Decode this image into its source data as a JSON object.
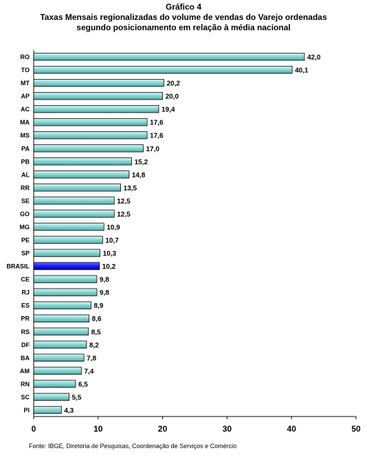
{
  "chart_title": "Gráfico 4",
  "chart_subtitle_line1": "Taxas Mensais regionalizadas do volume de vendas do Varejo ordenadas",
  "chart_subtitle_line2": "segundo posicionamento em relação à média nacional",
  "source_note": "Fonte: IBGE, Diretoria de Pesquisas, Coordenação de Serviços e Comércio",
  "colors": {
    "bar_fill": "#8fd9d6",
    "bar_highlight": "#1a1aff",
    "bar_border": "#000000"
  },
  "chart_data": {
    "type": "bar",
    "orientation": "horizontal",
    "categories": [
      "RO",
      "TO",
      "MT",
      "AP",
      "AC",
      "MA",
      "MS",
      "PA",
      "PB",
      "AL",
      "RR",
      "SE",
      "GO",
      "MG",
      "PE",
      "SP",
      "BRASIL",
      "CE",
      "RJ",
      "ES",
      "PR",
      "RS",
      "DF",
      "BA",
      "AM",
      "RN",
      "SC",
      "PI"
    ],
    "values": [
      42.0,
      40.1,
      20.2,
      20.0,
      19.4,
      17.6,
      17.6,
      17.0,
      15.2,
      14.8,
      13.5,
      12.5,
      12.5,
      10.9,
      10.7,
      10.3,
      10.2,
      9.8,
      9.8,
      8.9,
      8.6,
      8.5,
      8.2,
      7.8,
      7.4,
      6.5,
      5.5,
      4.3
    ],
    "value_labels": [
      "42,0",
      "40,1",
      "20,2",
      "20,0",
      "19,4",
      "17,6",
      "17,6",
      "17,0",
      "15,2",
      "14,8",
      "13,5",
      "12,5",
      "12,5",
      "10,9",
      "10,7",
      "10,3",
      "10,2",
      "9,8",
      "9,8",
      "8,9",
      "8,6",
      "8,5",
      "8,2",
      "7,8",
      "7,4",
      "6,5",
      "5,5",
      "4,3"
    ],
    "highlight_category": "BRASIL",
    "xlim": [
      0,
      50
    ],
    "xticks": [
      0,
      10,
      20,
      30,
      40,
      50
    ],
    "xtick_labels": [
      "0",
      "10",
      "20",
      "30",
      "40",
      "50"
    ],
    "xlabel": "",
    "ylabel": "",
    "grid": false,
    "legend": "none"
  }
}
